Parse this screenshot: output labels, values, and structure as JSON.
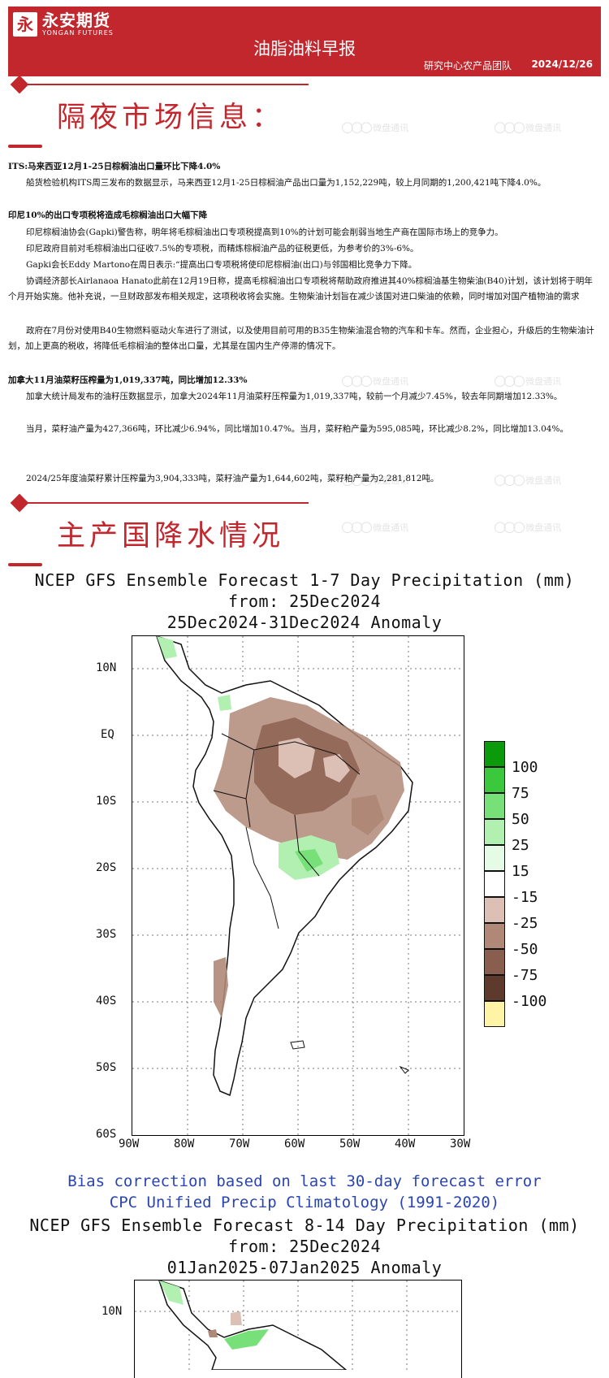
{
  "header": {
    "logo_mark": "永",
    "logo_cn": "永安期货",
    "logo_en": "YONGAN FUTURES",
    "report_title": "油脂油料早报",
    "team": "研究中心农产品团队",
    "date": "2024/12/26",
    "brand_color": "#c1272d"
  },
  "section1": {
    "title": "隔夜市场信息："
  },
  "section2": {
    "title": "主产国降水情况"
  },
  "watermark": {
    "text": "微盘通讯"
  },
  "news": [
    {
      "headline": "ITS:马来西亚12月1-25日棕榈油出口量环比下降4.0%",
      "paragraphs": [
        "船货检验机构ITS周三发布的数据显示，马来西亚12月1-25日棕榈油产品出口量为1,152,229吨，较上月同期的1,200,421吨下降4.0%。"
      ]
    },
    {
      "headline": "印尼10%的出口专项税将造成毛棕榈油出口大幅下降",
      "paragraphs": [
        "印尼棕榈油协会(Gapki)警告称，明年将毛棕榈油出口专项税提高到10%的计划可能会削弱当地生产商在国际市场上的竞争力。",
        "印尼政府目前对毛棕榈油出口征收7.5%的专项税，而精炼棕榈油产品的征税更低，为参考价的3%-6%。",
        "Gapki会长Eddy Martono在周日表示:“提高出口专项税将使印尼棕榈油(出口)与邻国相比竞争力下降。",
        "协调经济部长Airlanaoa Hanato此前在12月19日称，提高毛棕榈油出口专项税将帮助政府推进其40%棕榈油基生物柴油(B40)计划，该计划将于明年个月开始实施。他补充说，一旦财政部发布相关规定，这项税收将会实施。生物柴油计划旨在减少该国对进口柴油的依赖，同时增加对国产植物油的需求",
        "政府在7月份对使用B40生物燃料驱动火车进行了测试，以及使用目前可用的B35生物柴油混合物的汽车和卡车。然而，企业担心，升级后的生物柴油计划，加上更高的税收，将降低毛棕榈油的整体出口量，尤其是在国内生产停滞的情况下。"
      ]
    },
    {
      "headline": "加拿大11月油菜籽压榨量为1,019,337吨，同比增加12.33%",
      "paragraphs": [
        "加拿大统计局发布的油籽压数据显示，加拿大2024年11月油菜籽压榨量为1,019,337吨，较前一个月减少7.45%，较去年同期增加12.33%。",
        "当月，菜籽油产量为427,366吨，环比减少6.94%，同比增加10.47%。当月，菜籽粕产量为595,085吨，环比减少8.2%，同比增加13.04%。",
        "2024/25年度油菜籽累计压榨量为3,904,333吨，菜籽油产量为1,644,602吨，菜籽粕产量为2,281,812吨。"
      ]
    }
  ],
  "map1": {
    "title_lines": [
      "NCEP GFS Ensemble Forecast 1-7 Day Precipitation (mm)",
      "from: 25Dec2024",
      "25Dec2024-31Dec2024 Anomaly"
    ],
    "lat_labels": [
      "10N",
      "EQ",
      "10S",
      "20S",
      "30S",
      "40S",
      "50S",
      "60S"
    ],
    "lon_labels": [
      "90W",
      "80W",
      "70W",
      "60W",
      "50W",
      "40W",
      "30W"
    ],
    "legend": [
      {
        "label": "100",
        "color": "#0a9a0a"
      },
      {
        "label": "75",
        "color": "#3cc83c"
      },
      {
        "label": "50",
        "color": "#78e078"
      },
      {
        "label": "25",
        "color": "#b2f0b2"
      },
      {
        "label": "15",
        "color": "#e6fbe6"
      },
      {
        "label": "-15",
        "color": "#ffffff"
      },
      {
        "label": "-25",
        "color": "#dcc0b6"
      },
      {
        "label": "-50",
        "color": "#b08878"
      },
      {
        "label": "-75",
        "color": "#8a5e4e"
      },
      {
        "label": "-100",
        "color": "#5e3a2c"
      },
      {
        "label": "",
        "color": "#fff3a6"
      }
    ]
  },
  "bias": {
    "line1": "Bias correction based on last 30-day forecast error",
    "line2": "CPC Unified Precip Climatology (1991-2020)"
  },
  "map2": {
    "title_lines": [
      "NCEP GFS Ensemble Forecast 8-14 Day Precipitation (mm)",
      "from: 25Dec2024",
      "01Jan2025-07Jan2025 Anomaly"
    ],
    "lat_labels": [
      "10N"
    ]
  }
}
